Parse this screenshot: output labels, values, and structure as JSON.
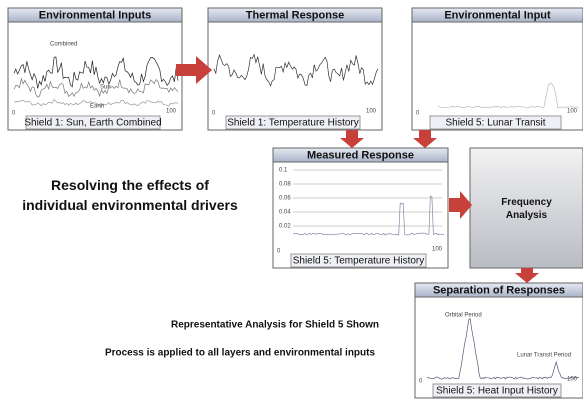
{
  "headline": "Resolving the effects of individual environmental drivers",
  "notes": [
    "Representative Analysis for Shield 5 Shown",
    "Process is applied to all layers and environmental inputs"
  ],
  "panels": [
    {
      "title": "Environmental Inputs",
      "caption": "Shield 1: Sun, Earth Combined",
      "x_start": "0",
      "x_end": "100",
      "labels": [
        "Combined",
        "Sun",
        "Earth"
      ]
    },
    {
      "title": "Thermal Response",
      "caption": "Shield 1: Temperature History",
      "x_start": "0",
      "x_end": "100"
    },
    {
      "title": "Environmental Input",
      "caption": "Shield 5: Lunar Transit",
      "x_start": "0",
      "x_end": "100"
    },
    {
      "title": "Measured Response",
      "caption": "Shield 5:  Temperature History",
      "x_start": "0",
      "x_end": "100",
      "y_labels": [
        "0.1",
        "0.08",
        "0.06",
        "0.04",
        "0.02"
      ]
    },
    {
      "title": "Frequency Analysis"
    },
    {
      "title": "Separation of Responses",
      "caption": "Shield 5: Heat Input History",
      "x_start": "0",
      "x_end": "100",
      "labels": [
        "Orbital Period",
        "Lunar Transit Period"
      ]
    }
  ]
}
